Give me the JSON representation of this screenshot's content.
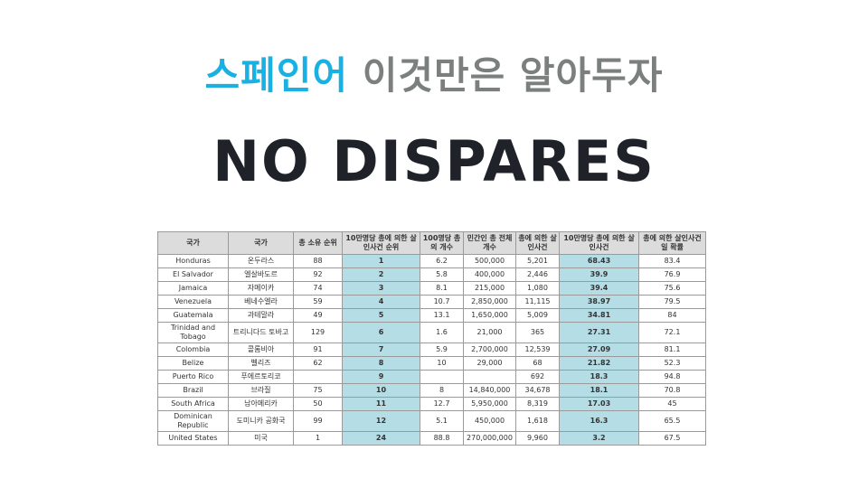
{
  "header": {
    "accent_text": "스페인어",
    "rest_text": "이것만은 알아두자",
    "title": "NO DISPARES"
  },
  "table": {
    "headers": [
      "국가",
      "국가",
      "총 소유 순위",
      "10만명당 총에 의한 살인사건 순위",
      "100명당 총의 개수",
      "민간인 총 전체 개수",
      "총에 의한 살인사건",
      "10만명당 총에 의한 살인사건",
      "총에 의한 살인사건일 확률"
    ],
    "rows": [
      [
        "Honduras",
        "온두라스",
        "88",
        "1",
        "6.2",
        "500,000",
        "5,201",
        "68.43",
        "83.4"
      ],
      [
        "El Salvador",
        "엘살바도르",
        "92",
        "2",
        "5.8",
        "400,000",
        "2,446",
        "39.9",
        "76.9"
      ],
      [
        "Jamaica",
        "자메이카",
        "74",
        "3",
        "8.1",
        "215,000",
        "1,080",
        "39.4",
        "75.6"
      ],
      [
        "Venezuela",
        "베네수엘라",
        "59",
        "4",
        "10.7",
        "2,850,000",
        "11,115",
        "38.97",
        "79.5"
      ],
      [
        "Guatemala",
        "과테말라",
        "49",
        "5",
        "13.1",
        "1,650,000",
        "5,009",
        "34.81",
        "84"
      ],
      [
        "Trinidad and Tobago",
        "트리니다드 토바고",
        "129",
        "6",
        "1.6",
        "21,000",
        "365",
        "27.31",
        "72.1"
      ],
      [
        "Colombia",
        "콜롬비아",
        "91",
        "7",
        "5.9",
        "2,700,000",
        "12,539",
        "27.09",
        "81.1"
      ],
      [
        "Belize",
        "벨리즈",
        "62",
        "8",
        "10",
        "29,000",
        "68",
        "21.82",
        "52.3"
      ],
      [
        "Puerto Rico",
        "푸에르토리코",
        "",
        "9",
        "",
        "",
        "692",
        "18.3",
        "94.8"
      ],
      [
        "Brazil",
        "브라질",
        "75",
        "10",
        "8",
        "14,840,000",
        "34,678",
        "18.1",
        "70.8"
      ],
      [
        "South Africa",
        "남아메리카",
        "50",
        "11",
        "12.7",
        "5,950,000",
        "8,319",
        "17.03",
        "45"
      ],
      [
        "Dominican Republic",
        "도미니카 공화국",
        "99",
        "12",
        "5.1",
        "450,000",
        "1,618",
        "16.3",
        "65.5"
      ],
      [
        "United States",
        "미국",
        "1",
        "24",
        "88.8",
        "270,000,000",
        "9,960",
        "3.2",
        "67.5"
      ]
    ],
    "tall_rows": [
      5,
      11
    ],
    "highlight_columns": [
      3,
      7
    ],
    "highlight_color": "#b5dde6",
    "header_color": "#dcdcdc"
  },
  "colors": {
    "accent": "#1ab1e2",
    "gray_text": "#7b7f7d",
    "title": "#1f2329"
  }
}
